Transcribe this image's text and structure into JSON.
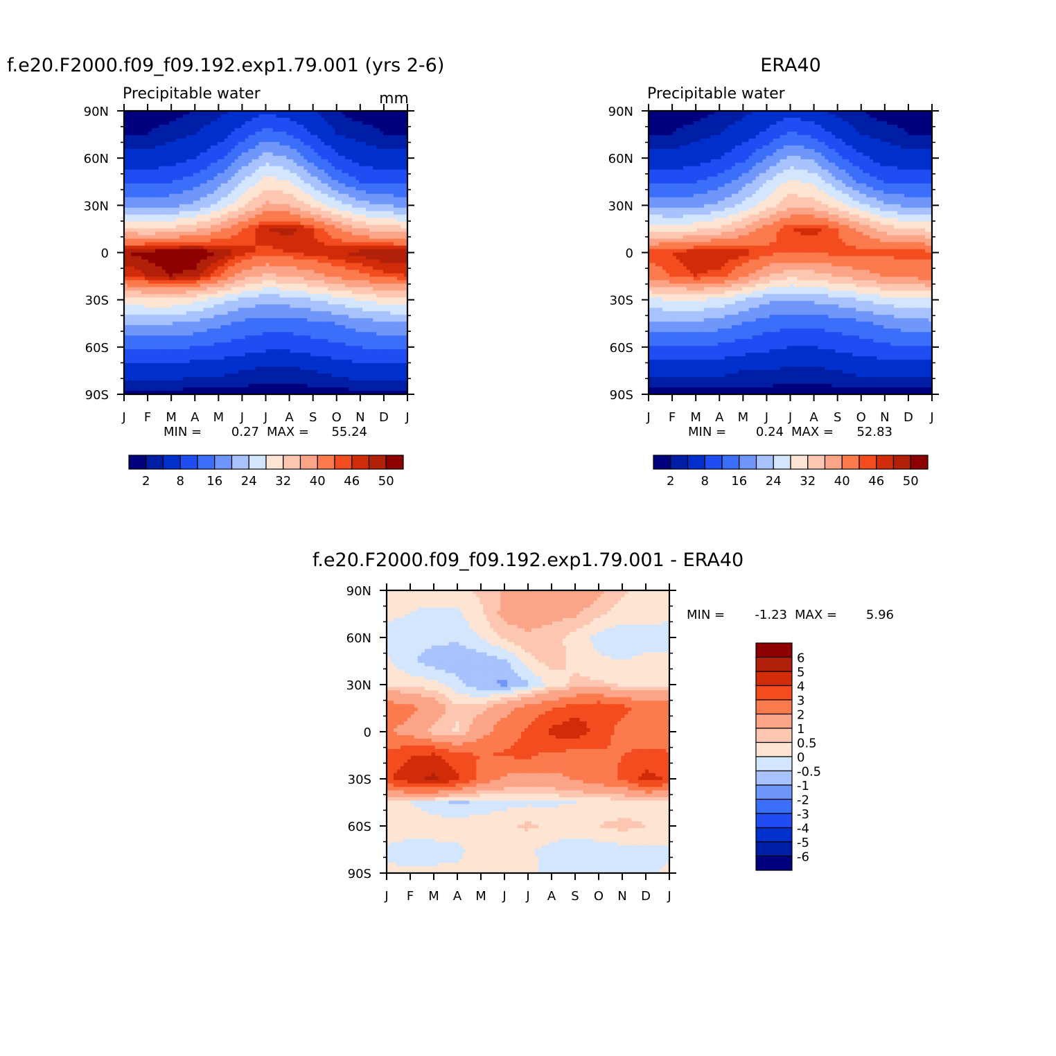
{
  "panels": [
    {
      "title": "f.e20.F2000.f09_f09.192.exp1.79.001 (yrs 2-6)",
      "left_label": "Precipitable water",
      "right_label": "mm",
      "stats": {
        "min_label": "MIN =",
        "min": "0.27",
        "max_label": "MAX =",
        "max": "55.24"
      }
    },
    {
      "title": "ERA40",
      "left_label": "Precipitable water",
      "right_label": "",
      "stats": {
        "min_label": "MIN =",
        "min": "0.24",
        "max_label": "MAX =",
        "max": "52.83"
      }
    },
    {
      "title": "f.e20.F2000.f09_f09.192.exp1.79.001 - ERA40",
      "stats": {
        "min_label": "MIN =",
        "min": "-1.23",
        "max_label": "MAX =",
        "max": "5.96"
      }
    }
  ],
  "chart_data": [
    {
      "type": "heatmap",
      "panel": "model",
      "x_tick_labels": [
        "J",
        "F",
        "M",
        "A",
        "M",
        "J",
        "J",
        "A",
        "S",
        "O",
        "N",
        "D",
        "J"
      ],
      "y_tick_labels": [
        "90N",
        "60N",
        "30N",
        "0",
        "30S",
        "60S",
        "90S"
      ],
      "ylim": [
        -90,
        90
      ],
      "lat": [
        90,
        75,
        60,
        45,
        30,
        15,
        0,
        -15,
        -30,
        -45,
        -60,
        -75,
        -90
      ],
      "months": [
        "J",
        "F",
        "M",
        "A",
        "M",
        "J",
        "J",
        "A",
        "S",
        "O",
        "N",
        "D"
      ],
      "values": [
        [
          1,
          1,
          1,
          2,
          3,
          5,
          7,
          6,
          4,
          2,
          1,
          1
        ],
        [
          2,
          2,
          3,
          4,
          6,
          10,
          14,
          12,
          8,
          4,
          3,
          2
        ],
        [
          5,
          5,
          6,
          8,
          11,
          17,
          22,
          20,
          14,
          9,
          6,
          5
        ],
        [
          11,
          11,
          12,
          14,
          18,
          24,
          30,
          28,
          22,
          16,
          12,
          11
        ],
        [
          19,
          18,
          19,
          21,
          25,
          31,
          37,
          36,
          31,
          26,
          22,
          20
        ],
        [
          33,
          32,
          33,
          35,
          39,
          44,
          48,
          49,
          46,
          41,
          36,
          34
        ],
        [
          50,
          51,
          52,
          52,
          50,
          47,
          45,
          46,
          47,
          48,
          49,
          50
        ],
        [
          46,
          48,
          50,
          49,
          44,
          38,
          35,
          36,
          38,
          41,
          43,
          45
        ],
        [
          30,
          31,
          31,
          29,
          26,
          23,
          21,
          22,
          24,
          26,
          28,
          30
        ],
        [
          20,
          20,
          20,
          19,
          17,
          15,
          14,
          14,
          15,
          16,
          18,
          19
        ],
        [
          13,
          13,
          13,
          12,
          11,
          10,
          9,
          9,
          10,
          11,
          12,
          13
        ],
        [
          6,
          6,
          6,
          5,
          5,
          4,
          3,
          3,
          4,
          5,
          6,
          6
        ],
        [
          1,
          1,
          1,
          1,
          1,
          1,
          1,
          1,
          1,
          1,
          1,
          1
        ]
      ],
      "colorbar": {
        "labels": [
          "2",
          "8",
          "16",
          "24",
          "32",
          "40",
          "46",
          "50"
        ],
        "levels": [
          2,
          4,
          8,
          12,
          16,
          20,
          24,
          28,
          32,
          36,
          40,
          44,
          46,
          48,
          50
        ],
        "colors": [
          "#00007f",
          "#001ea5",
          "#0030cc",
          "#1f4df3",
          "#3b6ffa",
          "#6e96fb",
          "#a7c2fd",
          "#d4e6fe",
          "#fee4d3",
          "#fdc6b0",
          "#fca487",
          "#fb7b4f",
          "#f34c1f",
          "#d02c0a",
          "#b3200a",
          "#8c0000"
        ]
      }
    },
    {
      "type": "heatmap",
      "panel": "era40",
      "x_tick_labels": [
        "J",
        "F",
        "M",
        "A",
        "M",
        "J",
        "J",
        "A",
        "S",
        "O",
        "N",
        "D",
        "J"
      ],
      "y_tick_labels": [
        "90N",
        "60N",
        "30N",
        "0",
        "30S",
        "60S",
        "90S"
      ],
      "ylim": [
        -90,
        90
      ],
      "lat": [
        90,
        75,
        60,
        45,
        30,
        15,
        0,
        -15,
        -30,
        -45,
        -60,
        -75,
        -90
      ],
      "months": [
        "J",
        "F",
        "M",
        "A",
        "M",
        "J",
        "J",
        "A",
        "S",
        "O",
        "N",
        "D"
      ],
      "values": [
        [
          1,
          1,
          1,
          2,
          3,
          5,
          6,
          5,
          3,
          2,
          1,
          1
        ],
        [
          2,
          2,
          3,
          4,
          6,
          9,
          13,
          11,
          7,
          4,
          3,
          2
        ],
        [
          5,
          5,
          6,
          8,
          11,
          16,
          21,
          19,
          13,
          9,
          6,
          5
        ],
        [
          11,
          11,
          12,
          14,
          18,
          24,
          29,
          27,
          21,
          15,
          12,
          11
        ],
        [
          19,
          18,
          19,
          21,
          25,
          30,
          35,
          34,
          30,
          25,
          21,
          19
        ],
        [
          31,
          30,
          31,
          33,
          37,
          42,
          46,
          47,
          44,
          39,
          34,
          32
        ],
        [
          45,
          46,
          48,
          48,
          47,
          45,
          44,
          44,
          45,
          45,
          45,
          45
        ],
        [
          42,
          44,
          46,
          45,
          41,
          36,
          33,
          34,
          36,
          38,
          40,
          41
        ],
        [
          27,
          28,
          28,
          27,
          24,
          21,
          20,
          21,
          22,
          24,
          26,
          27
        ],
        [
          19,
          19,
          19,
          18,
          16,
          14,
          13,
          13,
          14,
          15,
          17,
          18
        ],
        [
          12,
          12,
          12,
          11,
          10,
          9,
          8,
          8,
          9,
          10,
          11,
          12
        ],
        [
          5,
          5,
          5,
          5,
          4,
          4,
          3,
          3,
          4,
          5,
          5,
          5
        ],
        [
          1,
          1,
          1,
          1,
          1,
          1,
          1,
          1,
          1,
          1,
          1,
          1
        ]
      ],
      "colorbar": {
        "labels": [
          "2",
          "8",
          "16",
          "24",
          "32",
          "40",
          "46",
          "50"
        ],
        "levels": [
          2,
          4,
          8,
          12,
          16,
          20,
          24,
          28,
          32,
          36,
          40,
          44,
          46,
          48,
          50
        ],
        "colors": [
          "#00007f",
          "#001ea5",
          "#0030cc",
          "#1f4df3",
          "#3b6ffa",
          "#6e96fb",
          "#a7c2fd",
          "#d4e6fe",
          "#fee4d3",
          "#fdc6b0",
          "#fca487",
          "#fb7b4f",
          "#f34c1f",
          "#d02c0a",
          "#b3200a",
          "#8c0000"
        ]
      }
    },
    {
      "type": "heatmap",
      "panel": "difference",
      "x_tick_labels": [
        "J",
        "F",
        "M",
        "A",
        "M",
        "J",
        "J",
        "A",
        "S",
        "O",
        "N",
        "D",
        "J"
      ],
      "y_tick_labels": [
        "90N",
        "60N",
        "30N",
        "0",
        "30S",
        "60S",
        "90S"
      ],
      "ylim": [
        -90,
        90
      ],
      "lat": [
        90,
        75,
        60,
        45,
        30,
        15,
        0,
        -15,
        -30,
        -45,
        -60,
        -75,
        -90
      ],
      "months": [
        "J",
        "F",
        "M",
        "A",
        "M",
        "J",
        "J",
        "A",
        "S",
        "O",
        "N",
        "D"
      ],
      "values": [
        [
          0.2,
          0.1,
          0.2,
          0.3,
          0.6,
          1.1,
          1.3,
          1.4,
          1.6,
          1.2,
          0.6,
          0.3
        ],
        [
          0.1,
          0.0,
          -0.1,
          -0.1,
          0.4,
          1.2,
          1.3,
          1.2,
          1.1,
          0.6,
          0.2,
          0.2
        ],
        [
          -0.2,
          -0.3,
          -0.3,
          -0.4,
          0.0,
          0.6,
          0.9,
          0.7,
          0.3,
          -0.2,
          -0.3,
          -0.2
        ],
        [
          0.1,
          -0.4,
          -0.8,
          -0.9,
          -0.8,
          -0.6,
          0.3,
          0.7,
          0.4,
          0.1,
          0.0,
          0.1
        ],
        [
          0.4,
          0.3,
          0.2,
          -0.3,
          -0.9,
          -1.1,
          -0.6,
          0.2,
          0.6,
          0.6,
          0.4,
          0.4
        ],
        [
          2.6,
          2.3,
          1.5,
          0.6,
          0.8,
          1.6,
          2.4,
          2.9,
          3.6,
          3.8,
          3.3,
          2.7
        ],
        [
          2.1,
          1.6,
          0.7,
          0.4,
          1.6,
          2.6,
          3.1,
          4.3,
          4.6,
          3.6,
          2.6,
          2.1
        ],
        [
          3.2,
          3.9,
          4.2,
          3.3,
          3.0,
          3.1,
          3.2,
          2.7,
          2.6,
          2.8,
          3.0,
          3.4
        ],
        [
          3.8,
          4.7,
          5.2,
          4.2,
          2.6,
          1.8,
          1.6,
          1.7,
          2.1,
          2.6,
          3.1,
          4.4
        ],
        [
          0.3,
          0.0,
          -0.3,
          -0.6,
          -0.4,
          -0.2,
          -0.1,
          -0.1,
          0.0,
          0.1,
          0.1,
          0.2
        ],
        [
          0.4,
          0.4,
          0.3,
          0.3,
          0.4,
          0.4,
          0.6,
          0.4,
          0.3,
          0.5,
          0.7,
          0.5
        ],
        [
          -0.1,
          -0.3,
          -0.2,
          -0.1,
          0.2,
          0.3,
          0.1,
          -0.2,
          -0.3,
          -0.3,
          -0.2,
          -0.1
        ],
        [
          0.1,
          0.1,
          0.1,
          0.1,
          0.1,
          0.2,
          0.1,
          -0.1,
          -0.2,
          -0.2,
          -0.2,
          -0.1
        ]
      ],
      "colorbar": {
        "labels": [
          "6",
          "5",
          "4",
          "3",
          "2",
          "1",
          "0.5",
          "0",
          "-0.5",
          "-1",
          "-2",
          "-3",
          "-4",
          "-5",
          "-6"
        ],
        "levels": [
          6,
          5,
          4,
          3,
          2,
          1,
          0.5,
          0,
          -0.5,
          -1,
          -2,
          -3,
          -4,
          -5,
          -6
        ],
        "colors": [
          "#8c0000",
          "#b3200a",
          "#d02c0a",
          "#f34c1f",
          "#fb7b4f",
          "#fca487",
          "#fdc6b0",
          "#fee4d3",
          "#d4e6fe",
          "#a7c2fd",
          "#6e96fb",
          "#3b6ffa",
          "#1f4df3",
          "#0030cc",
          "#001ea5",
          "#00007f"
        ]
      }
    }
  ]
}
